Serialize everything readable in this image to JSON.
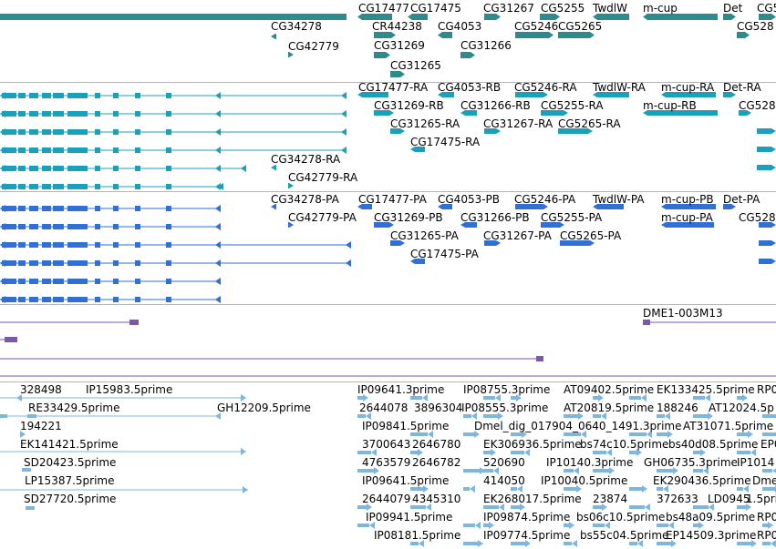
{
  "tracks": {
    "genes": {
      "color": "#2e8b8b",
      "labels": [
        "CG17477",
        "CG17475",
        "CG31267",
        "CG5255",
        "TwdlW",
        "m-cup",
        "Det",
        "CG5",
        "CG34278",
        "CR44238",
        "CG4053",
        "CG5246",
        "CG5265",
        "CG528",
        "CG42779",
        "CG31269",
        "CG31266",
        "CG31265"
      ]
    },
    "transcripts_ra": {
      "color": "#1aa0b8",
      "labels": [
        "CG17477-RA",
        "CG4053-RB",
        "CG5246-RA",
        "TwdlW-RA",
        "m-cup-RA",
        "Det-RA",
        "CG31269-RB",
        "CG31266-RB",
        "CG5255-RA",
        "m-cup-RB",
        "CG528",
        "CG31265-RA",
        "CG31267-RA",
        "CG5265-RA",
        "CG17475-RA",
        "CG34278-RA",
        "CG42779-RA"
      ]
    },
    "proteins_pa": {
      "color": "#2f6fd6",
      "labels": [
        "CG34278-PA",
        "CG17477-PA",
        "CG4053-PB",
        "CG5246-PA",
        "TwdlW-PA",
        "m-cup-PB",
        "Det-PA",
        "CG42779-PA",
        "CG31269-PB",
        "CG31266-PB",
        "CG5255-PA",
        "m-cup-PA",
        "CG528",
        "CG31265-PA",
        "CG31267-PA",
        "CG5265-PA",
        "CG17475-PA"
      ]
    },
    "clones": {
      "color": "#7a5aa8",
      "labels": [
        "DME1-003M13"
      ]
    },
    "ests": {
      "color": "#7fb6de",
      "labels": [
        "328498",
        "IP15983.5prime",
        "IP09641.3prime",
        "IP08755.3prime",
        "AT09402.5prime",
        "EK133425.5prime",
        "RP0",
        "RE33429.5prime",
        "GH12209.5prime",
        "2644078",
        "3896304",
        "IP08555.3prime",
        "AT20819.5prime",
        "188246",
        "AT12024.5p",
        "194221",
        "IP09841.5prime",
        "Dmel_dig_017904_0640_1491.3prime",
        "AT31071.5prime",
        "EK141421.5prime",
        "3700643",
        "2646780",
        "EK306936.5prime",
        "bs74c10.5prime",
        "bs40d08.5prime",
        "EP0",
        "SD20423.5prime",
        "4763579",
        "2646782",
        "520690",
        "IP10140.3prime",
        "GH06735.3prime",
        "IP1014",
        "LP15387.5prime",
        "IP09641.5prime",
        "414050",
        "IP10040.5prime",
        "EK290436.5prime",
        "Dme",
        "SD27720.5prime",
        "2644079",
        "4345310",
        "EK268017.5prime",
        "23874",
        "372633",
        "LD0945",
        "1.5prime",
        "IP09941.5prime",
        "IP09874.5prime",
        "bs06c10.5prime",
        "bs48a09.5prime",
        "RP0",
        "IP08181.5prime",
        "IP09774.5prime",
        "bs55c04.5prime",
        "EP14509.3prime",
        "RP0"
      ]
    }
  }
}
